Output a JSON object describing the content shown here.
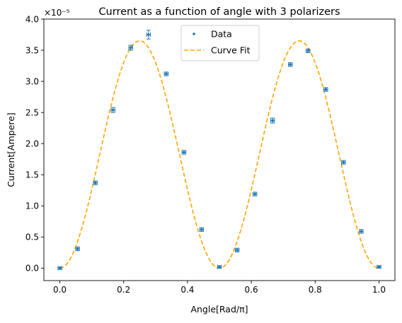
{
  "chart_data": {
    "type": "scatter",
    "title": "Current as a function of angle with 3 polarizers",
    "xlabel": "Angle[Rad/π]",
    "ylabel": "Current[Ampere]",
    "y_scale_label": "×10⁻⁵",
    "xlim": [
      -0.05,
      1.05
    ],
    "ylim": [
      -0.2,
      4.0
    ],
    "x_ticks": [
      0.0,
      0.2,
      0.4,
      0.6,
      0.8,
      1.0
    ],
    "x_tick_labels": [
      "0.0",
      "0.2",
      "0.4",
      "0.6",
      "0.8",
      "1.0"
    ],
    "y_ticks": [
      0.0,
      0.5,
      1.0,
      1.5,
      2.0,
      2.5,
      3.0,
      3.5,
      4.0
    ],
    "y_tick_labels": [
      "0.0",
      "0.5",
      "1.0",
      "1.5",
      "2.0",
      "2.5",
      "3.0",
      "3.5",
      "4.0"
    ],
    "grid": false,
    "legend_position": "top-center",
    "series": [
      {
        "name": "Data",
        "kind": "points_with_errorbars",
        "color": "#1f77b4",
        "x": [
          0.0,
          0.0556,
          0.1111,
          0.1667,
          0.2222,
          0.2778,
          0.3333,
          0.3889,
          0.4444,
          0.5,
          0.5556,
          0.6111,
          0.6667,
          0.7222,
          0.7778,
          0.8333,
          0.8889,
          0.9444,
          1.0
        ],
        "y": [
          0.0,
          0.31,
          1.37,
          2.54,
          3.54,
          3.75,
          3.12,
          1.86,
          0.62,
          0.02,
          0.29,
          1.19,
          2.37,
          3.27,
          3.49,
          2.87,
          1.7,
          0.59,
          0.02
        ],
        "y_err": [
          0.02,
          0.03,
          0.03,
          0.04,
          0.04,
          0.07,
          0.03,
          0.03,
          0.03,
          0.02,
          0.03,
          0.03,
          0.04,
          0.03,
          0.03,
          0.03,
          0.03,
          0.03,
          0.02
        ],
        "x_err": 0.006
      },
      {
        "name": "Curve Fit",
        "kind": "dashed_line",
        "color": "#ffa500",
        "model": "A*sin^2(2*pi*x)/4 with A = 14.6",
        "amplitude": 3.65
      }
    ]
  }
}
